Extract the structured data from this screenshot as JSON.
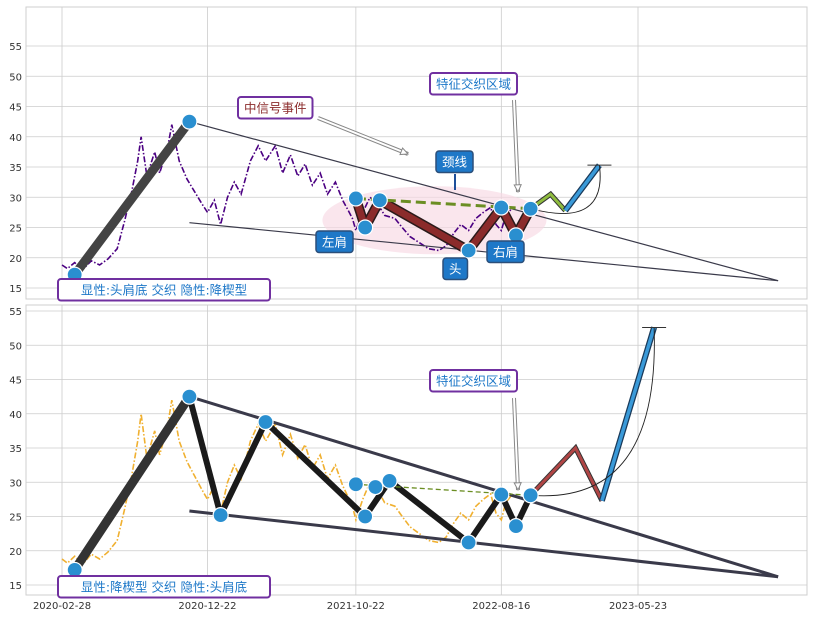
{
  "colors": {
    "grid": "#cccccc",
    "price_top": "#4b0082",
    "price_bottom": "#f0b030",
    "node": "#2a8fd0",
    "red_path": "#8b2b2b",
    "dark_path": "#303030",
    "neckline": "#6b8e23",
    "projection_blue": "#3a9ad9",
    "label_bg": "#1e78c8",
    "label_border": "#7030a0",
    "highlight": "#f8d8e4"
  },
  "chart_data": [
    {
      "type": "line",
      "panel": "top",
      "y_ticks": [
        15,
        20,
        25,
        30,
        35,
        40,
        45,
        50,
        55
      ],
      "ylim": [
        13.5,
        56.5
      ],
      "xlim": [
        "2020-01-15",
        "2024-04-15"
      ],
      "price_color": "#4b0082",
      "series": [
        {
          "values": [
            [
              "2020-02-28",
              18.8
            ],
            [
              "2020-03-10",
              18.2
            ],
            [
              "2020-03-25",
              19.2
            ],
            [
              "2020-04-10",
              18.0
            ],
            [
              "2020-04-28",
              19.5
            ],
            [
              "2020-05-15",
              18.8
            ],
            [
              "2020-06-01",
              19.8
            ],
            [
              "2020-06-20",
              21.5
            ],
            [
              "2020-07-05",
              26.0
            ],
            [
              "2020-07-20",
              31.0
            ],
            [
              "2020-08-01",
              36.0
            ],
            [
              "2020-08-08",
              40.0
            ],
            [
              "2020-08-20",
              33.5
            ],
            [
              "2020-09-05",
              37.5
            ],
            [
              "2020-09-15",
              34.0
            ],
            [
              "2020-10-01",
              38.0
            ],
            [
              "2020-10-10",
              42.0
            ],
            [
              "2020-10-25",
              36.0
            ],
            [
              "2020-11-10",
              33.0
            ],
            [
              "2020-11-25",
              31.0
            ],
            [
              "2020-12-10",
              29.0
            ],
            [
              "2020-12-22",
              27.5
            ],
            [
              "2021-01-05",
              29.5
            ],
            [
              "2021-01-18",
              25.5
            ],
            [
              "2021-02-01",
              30.0
            ],
            [
              "2021-02-15",
              32.5
            ],
            [
              "2021-03-01",
              30.5
            ],
            [
              "2021-03-20",
              36.0
            ],
            [
              "2021-04-05",
              38.5
            ],
            [
              "2021-04-20",
              36.0
            ],
            [
              "2021-05-10",
              38.5
            ],
            [
              "2021-05-25",
              34.0
            ],
            [
              "2021-06-10",
              37.0
            ],
            [
              "2021-06-25",
              33.5
            ],
            [
              "2021-07-10",
              35.5
            ],
            [
              "2021-07-25",
              32.0
            ],
            [
              "2021-08-10",
              34.0
            ],
            [
              "2021-08-25",
              30.5
            ],
            [
              "2021-09-10",
              32.5
            ],
            [
              "2021-09-25",
              29.5
            ],
            [
              "2021-10-05",
              28.0
            ],
            [
              "2021-10-15",
              26.5
            ],
            [
              "2021-10-22",
              24.5
            ],
            [
              "2021-11-05",
              27.5
            ],
            [
              "2021-11-20",
              30.0
            ],
            [
              "2021-12-05",
              29.0
            ],
            [
              "2021-12-20",
              27.0
            ],
            [
              "2022-01-10",
              26.5
            ],
            [
              "2022-01-25",
              25.0
            ],
            [
              "2022-02-10",
              23.5
            ],
            [
              "2022-03-01",
              22.5
            ],
            [
              "2022-03-20",
              21.5
            ],
            [
              "2022-04-10",
              21.2
            ],
            [
              "2022-04-25",
              22.0
            ],
            [
              "2022-05-10",
              24.0
            ],
            [
              "2022-05-25",
              25.5
            ],
            [
              "2022-06-10",
              24.5
            ],
            [
              "2022-06-25",
              26.5
            ],
            [
              "2022-07-10",
              27.5
            ],
            [
              "2022-07-25",
              28.3
            ],
            [
              "2022-08-05",
              25.5
            ],
            [
              "2022-08-16",
              24.5
            ],
            [
              "2022-08-25",
              27.0
            ],
            [
              "2022-09-05",
              28.0
            ]
          ]
        }
      ],
      "pattern_nodes": [
        [
          "2020-03-25",
          17.2
        ],
        [
          "2020-11-15",
          42.5
        ],
        [
          "2021-10-22",
          29.8
        ],
        [
          "2021-11-10",
          25.0
        ],
        [
          "2021-12-10",
          29.5
        ],
        [
          "2022-06-10",
          21.2
        ],
        [
          "2022-08-16",
          28.3
        ],
        [
          "2022-09-15",
          23.7
        ],
        [
          "2022-10-15",
          28.1
        ]
      ],
      "red_path": [
        [
          "2021-10-22",
          29.8
        ],
        [
          "2021-11-10",
          25.0
        ],
        [
          "2021-12-10",
          29.5
        ],
        [
          "2022-06-10",
          21.2
        ],
        [
          "2022-08-16",
          28.3
        ],
        [
          "2022-09-15",
          23.7
        ],
        [
          "2022-10-15",
          28.1
        ]
      ],
      "neckline": [
        [
          "2021-10-22",
          29.8
        ],
        [
          "2022-10-15",
          28.1
        ]
      ],
      "green_projection": [
        [
          "2022-10-15",
          28.1
        ],
        [
          "2022-11-25",
          30.5
        ],
        [
          "2022-12-25",
          27.8
        ]
      ],
      "blue_projection": [
        [
          "2022-12-25",
          27.8
        ],
        [
          "2023-03-05",
          35.3
        ]
      ],
      "wedge_upper": [
        [
          "2020-11-15",
          42.5
        ],
        [
          "2024-03-05",
          16.2
        ]
      ],
      "wedge_lower": [
        [
          "2020-11-15",
          25.8
        ],
        [
          "2024-03-05",
          16.2
        ]
      ],
      "first_leg": [
        [
          "2020-03-25",
          17.2
        ],
        [
          "2020-11-15",
          42.5
        ]
      ],
      "labels": {
        "bottom_text": "显性:头肩底 交织 隐性:降楔型",
        "signal_event": "中信号事件",
        "cross_zone": "特征交织区域",
        "neckline": "颈线",
        "left_shoulder": "左肩",
        "head": "头",
        "right_shoulder": "右肩"
      }
    },
    {
      "type": "line",
      "panel": "bottom",
      "y_ticks": [
        15,
        20,
        25,
        30,
        35,
        40,
        45,
        50,
        55
      ],
      "ylim": [
        13.5,
        56.5
      ],
      "xlim": [
        "2020-01-15",
        "2024-04-15"
      ],
      "x_ticks": [
        "2020-02-28",
        "2020-12-22",
        "2021-10-22",
        "2022-08-16",
        "2023-05-23"
      ],
      "price_color": "#f0b030",
      "series": [
        {
          "values": [
            [
              "2020-02-28",
              18.8
            ],
            [
              "2020-03-10",
              18.2
            ],
            [
              "2020-03-25",
              19.2
            ],
            [
              "2020-04-10",
              18.0
            ],
            [
              "2020-04-28",
              19.5
            ],
            [
              "2020-05-15",
              18.8
            ],
            [
              "2020-06-01",
              19.8
            ],
            [
              "2020-06-20",
              21.5
            ],
            [
              "2020-07-05",
              26.0
            ],
            [
              "2020-07-20",
              31.0
            ],
            [
              "2020-08-01",
              36.0
            ],
            [
              "2020-08-08",
              40.0
            ],
            [
              "2020-08-20",
              33.5
            ],
            [
              "2020-09-05",
              37.5
            ],
            [
              "2020-09-15",
              34.0
            ],
            [
              "2020-10-01",
              38.0
            ],
            [
              "2020-10-10",
              42.0
            ],
            [
              "2020-10-25",
              36.0
            ],
            [
              "2020-11-10",
              33.0
            ],
            [
              "2020-11-25",
              31.0
            ],
            [
              "2020-12-10",
              29.0
            ],
            [
              "2020-12-22",
              27.5
            ],
            [
              "2021-01-05",
              29.5
            ],
            [
              "2021-01-18",
              25.5
            ],
            [
              "2021-02-01",
              30.0
            ],
            [
              "2021-02-15",
              32.5
            ],
            [
              "2021-03-01",
              30.5
            ],
            [
              "2021-03-20",
              36.0
            ],
            [
              "2021-04-05",
              38.5
            ],
            [
              "2021-04-20",
              36.0
            ],
            [
              "2021-05-10",
              38.5
            ],
            [
              "2021-05-25",
              34.0
            ],
            [
              "2021-06-10",
              37.0
            ],
            [
              "2021-06-25",
              33.5
            ],
            [
              "2021-07-10",
              35.5
            ],
            [
              "2021-07-25",
              32.0
            ],
            [
              "2021-08-10",
              34.0
            ],
            [
              "2021-08-25",
              30.5
            ],
            [
              "2021-09-10",
              32.5
            ],
            [
              "2021-09-25",
              29.5
            ],
            [
              "2021-10-05",
              28.0
            ],
            [
              "2021-10-15",
              26.5
            ],
            [
              "2021-10-22",
              24.5
            ],
            [
              "2021-11-05",
              27.5
            ],
            [
              "2021-11-20",
              30.0
            ],
            [
              "2021-12-05",
              29.0
            ],
            [
              "2021-12-20",
              27.0
            ],
            [
              "2022-01-10",
              26.5
            ],
            [
              "2022-01-25",
              25.0
            ],
            [
              "2022-02-10",
              23.5
            ],
            [
              "2022-03-01",
              22.5
            ],
            [
              "2022-03-20",
              21.5
            ],
            [
              "2022-04-10",
              21.2
            ],
            [
              "2022-04-25",
              22.0
            ],
            [
              "2022-05-10",
              24.0
            ],
            [
              "2022-05-25",
              25.5
            ],
            [
              "2022-06-10",
              24.5
            ],
            [
              "2022-06-25",
              26.5
            ],
            [
              "2022-07-10",
              27.5
            ],
            [
              "2022-07-25",
              28.3
            ],
            [
              "2022-08-05",
              25.5
            ],
            [
              "2022-08-16",
              24.5
            ],
            [
              "2022-08-25",
              27.0
            ],
            [
              "2022-09-05",
              28.0
            ]
          ]
        }
      ],
      "pattern_nodes": [
        [
          "2020-03-25",
          17.2
        ],
        [
          "2020-11-15",
          42.5
        ],
        [
          "2021-01-18",
          25.2
        ],
        [
          "2021-04-20",
          38.8
        ],
        [
          "2021-10-22",
          29.7
        ],
        [
          "2021-11-10",
          25.0
        ],
        [
          "2021-12-01",
          29.3
        ],
        [
          "2021-12-30",
          30.2
        ],
        [
          "2022-06-10",
          21.2
        ],
        [
          "2022-08-16",
          28.2
        ],
        [
          "2022-09-15",
          23.6
        ],
        [
          "2022-10-15",
          28.1
        ]
      ],
      "dark_path": [
        [
          "2020-03-25",
          17.2
        ],
        [
          "2020-11-15",
          42.5
        ],
        [
          "2021-01-18",
          25.2
        ],
        [
          "2021-04-20",
          38.8
        ],
        [
          "2021-11-10",
          25.0
        ],
        [
          "2021-12-30",
          30.2
        ],
        [
          "2022-06-10",
          21.2
        ],
        [
          "2022-08-16",
          28.2
        ],
        [
          "2022-09-15",
          23.6
        ],
        [
          "2022-10-15",
          28.1
        ]
      ],
      "neckline": [
        [
          "2021-10-22",
          29.7
        ],
        [
          "2022-10-15",
          28.1
        ]
      ],
      "red_projection": [
        [
          "2022-10-15",
          28.1
        ],
        [
          "2023-01-15",
          35.0
        ],
        [
          "2023-03-10",
          27.3
        ]
      ],
      "blue_projection": [
        [
          "2023-03-10",
          27.3
        ],
        [
          "2023-06-25",
          52.6
        ]
      ],
      "wedge_upper": [
        [
          "2020-11-15",
          42.5
        ],
        [
          "2024-03-05",
          16.2
        ]
      ],
      "wedge_lower": [
        [
          "2020-11-15",
          25.8
        ],
        [
          "2024-03-05",
          16.2
        ]
      ],
      "labels": {
        "bottom_text": "显性:降楔型 交织 隐性:头肩底",
        "cross_zone": "特征交织区域"
      }
    }
  ]
}
